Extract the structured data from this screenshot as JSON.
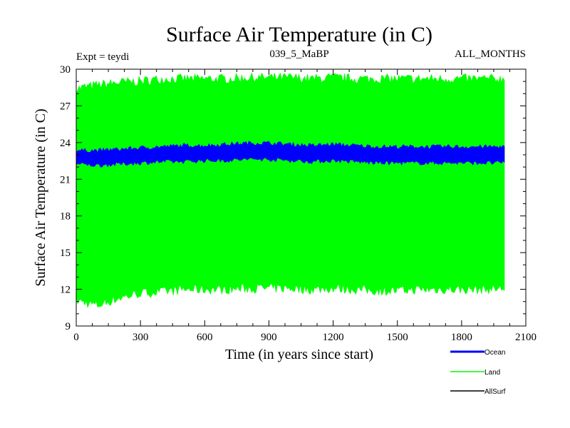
{
  "chart_data": {
    "type": "area",
    "title": "Surface Air Temperature (in C)",
    "subtitle_left": "Expt = teydi",
    "subtitle_center": "039_5_MaBP",
    "subtitle_right": "ALL_MONTHS",
    "xlabel": "Time (in years since start)",
    "ylabel": "Surface Air Temperature (in C)",
    "xlim": [
      0,
      2100
    ],
    "ylim": [
      9,
      30
    ],
    "xticks": [
      0,
      300,
      600,
      900,
      1200,
      1500,
      1800,
      2100
    ],
    "yticks": [
      9,
      12,
      15,
      18,
      21,
      24,
      27,
      30
    ],
    "x_data_range": [
      0,
      2000
    ],
    "series": [
      {
        "name": "Land",
        "color": "#00ff00",
        "x": [
          0,
          100,
          200,
          300,
          400,
          500,
          600,
          700,
          800,
          900,
          1000,
          1100,
          1200,
          1300,
          1400,
          1500,
          1600,
          1700,
          1800,
          1900,
          2000
        ],
        "max": [
          28.5,
          28.8,
          29.0,
          29.1,
          29.3,
          29.3,
          29.3,
          29.3,
          29.4,
          29.4,
          29.4,
          29.3,
          29.4,
          29.3,
          29.3,
          29.3,
          29.3,
          29.3,
          29.3,
          29.3,
          29.3
        ],
        "min": [
          11.0,
          10.6,
          11.2,
          11.6,
          11.7,
          11.9,
          11.9,
          11.9,
          12.0,
          12.0,
          12.0,
          11.9,
          12.0,
          11.9,
          11.8,
          11.8,
          11.9,
          11.9,
          11.9,
          11.9,
          12.0
        ]
      },
      {
        "name": "Ocean",
        "color": "#0000ff",
        "x": [
          0,
          100,
          200,
          300,
          400,
          500,
          600,
          700,
          800,
          900,
          1000,
          1100,
          1200,
          1300,
          1400,
          1500,
          1600,
          1700,
          1800,
          1900,
          2000
        ],
        "max": [
          23.4,
          23.4,
          23.5,
          23.6,
          23.7,
          23.8,
          23.8,
          23.9,
          24.0,
          24.0,
          23.9,
          23.8,
          23.9,
          23.8,
          23.7,
          23.7,
          23.7,
          23.7,
          23.7,
          23.7,
          23.7
        ],
        "min": [
          22.2,
          22.1,
          22.2,
          22.3,
          22.4,
          22.4,
          22.5,
          22.5,
          22.6,
          22.6,
          22.5,
          22.4,
          22.5,
          22.4,
          22.3,
          22.3,
          22.3,
          22.3,
          22.3,
          22.3,
          22.3
        ]
      },
      {
        "name": "AllSurf",
        "color": "#000000",
        "x": [],
        "max": [],
        "min": []
      }
    ],
    "legend": [
      "Ocean",
      "Land",
      "AllSurf"
    ],
    "legend_position": "bottom-right"
  }
}
